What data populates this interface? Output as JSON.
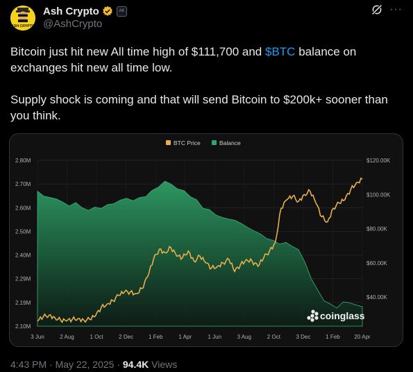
{
  "post": {
    "author_name": "Ash Crypto",
    "author_handle": "@AshCrypto",
    "avatar_text": "ASH CRYPTO",
    "affiliate_badge_text": "AK",
    "text_line1_before": "Bitcoin just hit new All time high of $111,700 and ",
    "cashtag": "$BTC",
    "text_line1_after": " balance on exchanges hit new all time low.",
    "text_para2": "Supply shock is coming and that will send Bitcoin to $200k+ sooner than you think.",
    "time": "4:43 PM",
    "date": "May 22, 2025",
    "views_count": "94.4K",
    "views_label": "Views",
    "separator": "·",
    "more_label": "···",
    "icons": {
      "grok": "grok-icon",
      "verified": "verified-badge-icon",
      "more": "more-icon"
    },
    "colors": {
      "accent": "#1d9bf0",
      "verified": "#f3ba2f",
      "muted": "#71767b"
    }
  },
  "chart_data": {
    "type": "line",
    "watermark": "coinglass",
    "legend": [
      "BTC Price",
      "Balance"
    ],
    "legend_position": "top-center",
    "x_labels": [
      "3 Jun",
      "2 Aug",
      "1 Oct",
      "2 Dec",
      "1 Feb",
      "1 Apr",
      "1 Jun",
      "3 Aug",
      "2 Oct",
      "3 Dec",
      "1 Feb",
      "20 Apr"
    ],
    "left_axis_labels": [
      "2.80M",
      "2.70M",
      "2.60M",
      "2.50M",
      "2.40M",
      "2.29M",
      "2.19M",
      "2.10M"
    ],
    "right_axis_labels": [
      "$120.00K",
      "$100.00K",
      "$80.00K",
      "$60.00K",
      "$40.00K"
    ],
    "left_ylim": [
      2.1,
      2.8
    ],
    "right_ylim": [
      23000,
      120000
    ],
    "grid": true,
    "series": [
      {
        "name": "Balance",
        "axis": "left",
        "style": "area",
        "color": "#2ea36c",
        "values": [
          2.67,
          2.65,
          2.64,
          2.64,
          2.62,
          2.61,
          2.62,
          2.6,
          2.59,
          2.6,
          2.6,
          2.61,
          2.62,
          2.63,
          2.64,
          2.63,
          2.64,
          2.65,
          2.67,
          2.69,
          2.71,
          2.7,
          2.68,
          2.67,
          2.65,
          2.63,
          2.6,
          2.59,
          2.57,
          2.56,
          2.55,
          2.55,
          2.53,
          2.52,
          2.5,
          2.49,
          2.47,
          2.46,
          2.45,
          2.45,
          2.44,
          2.42,
          2.37,
          2.3,
          2.25,
          2.21,
          2.19,
          2.18,
          2.2,
          2.2,
          2.19,
          2.18
        ]
      },
      {
        "name": "BTC Price",
        "axis": "right",
        "style": "line",
        "color": "#e8b04b",
        "values": [
          26000,
          28500,
          29500,
          28000,
          26500,
          26000,
          27000,
          27500,
          26500,
          27000,
          29000,
          34000,
          36000,
          38000,
          41000,
          43000,
          43000,
          42000,
          45000,
          52000,
          62000,
          68000,
          66000,
          69000,
          64000,
          63000,
          67000,
          61000,
          64000,
          60000,
          57000,
          58000,
          60000,
          62000,
          55000,
          59000,
          62000,
          61000,
          58000,
          63000,
          67000,
          72000,
          92000,
          97000,
          99000,
          96000,
          100000,
          102000,
          95000,
          87000,
          84000,
          92000,
          95000,
          97000,
          103000,
          107000,
          109000
        ]
      }
    ]
  }
}
